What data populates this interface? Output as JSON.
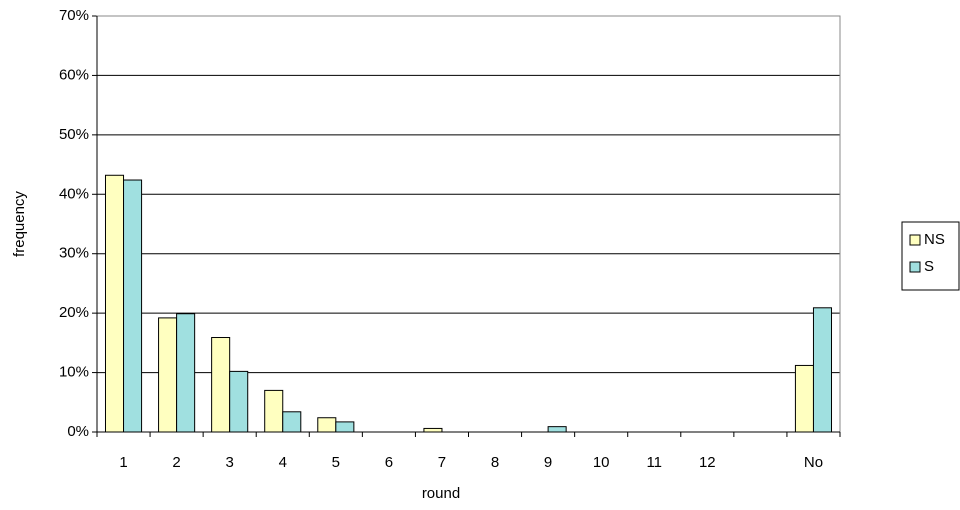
{
  "chart_data": {
    "type": "bar",
    "x_label": "round",
    "y_label": "frequency",
    "categories": [
      "1",
      "2",
      "3",
      "4",
      "5",
      "6",
      "7",
      "8",
      "9",
      "10",
      "11",
      "12",
      null,
      "No"
    ],
    "series": [
      {
        "name": "NS",
        "color": "#ffffc0",
        "values": [
          43.2,
          19.2,
          15.9,
          7.0,
          2.4,
          0,
          0.6,
          0,
          0,
          0,
          0,
          0,
          null,
          11.2
        ]
      },
      {
        "name": "S",
        "color": "#a0e0e0",
        "values": [
          42.4,
          19.9,
          10.2,
          3.4,
          1.7,
          0,
          0,
          0,
          0.9,
          0,
          0,
          0,
          null,
          20.9
        ]
      }
    ],
    "ylim": [
      0,
      70
    ],
    "yticks": [
      {
        "value": 0,
        "label": "0%"
      },
      {
        "value": 10,
        "label": "10%"
      },
      {
        "value": 20,
        "label": "20%"
      },
      {
        "value": 30,
        "label": "30%"
      },
      {
        "value": 40,
        "label": "40%"
      },
      {
        "value": 50,
        "label": "50%"
      },
      {
        "value": 60,
        "label": "60%"
      },
      {
        "value": 70,
        "label": "70%"
      }
    ],
    "grid": true,
    "legend": "right"
  }
}
